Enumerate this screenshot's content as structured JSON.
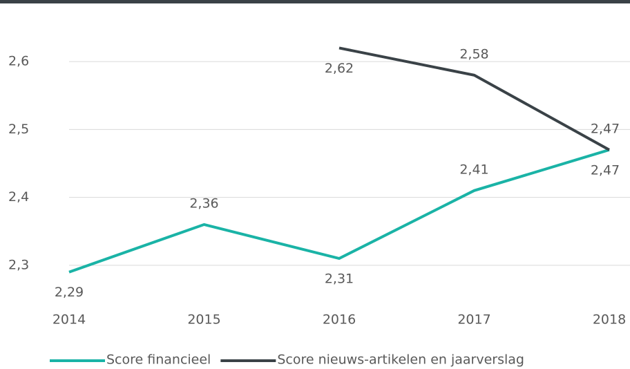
{
  "chart_data": {
    "type": "line",
    "categories": [
      "2014",
      "2015",
      "2016",
      "2017",
      "2018"
    ],
    "series": [
      {
        "name": "Score financieel",
        "color": "#1ab3a6",
        "values": [
          2.29,
          2.36,
          2.31,
          2.41,
          2.47
        ],
        "value_labels": [
          "2,29",
          "2,36",
          "2,31",
          "2,41",
          "2,47"
        ]
      },
      {
        "name": "Score nieuws-artikelen en jaarverslag",
        "color": "#3a4247",
        "values": [
          null,
          null,
          2.62,
          2.58,
          2.47
        ],
        "value_labels": [
          null,
          null,
          "2,62",
          "2,58",
          "2,47"
        ]
      }
    ],
    "ylim": [
      2.25,
      2.65
    ],
    "yticks": [
      {
        "value": 2.3,
        "label": "2,3"
      },
      {
        "value": 2.4,
        "label": "2,4"
      },
      {
        "value": 2.5,
        "label": "2,5"
      },
      {
        "value": 2.6,
        "label": "2,6"
      }
    ],
    "grid": true,
    "legend": "bottom"
  }
}
